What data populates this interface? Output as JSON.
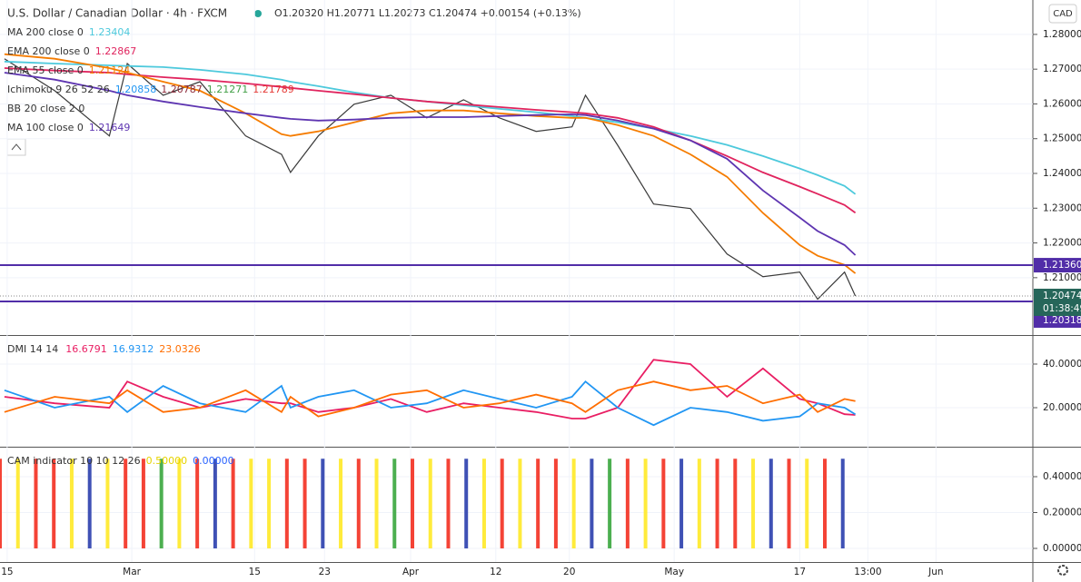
{
  "header": {
    "symbol": "U.S. Dollar / Canadian Dollar · 4h · FXCM",
    "ohlc": "O1.20320 H1.20771 L1.20273 C1.20474 +0.00154 (+0.13%)",
    "currency": "CAD"
  },
  "chart_data": [
    {
      "type": "line",
      "grid": true,
      "xlim": [
        0,
        115
      ],
      "xticks": [
        {
          "value": 0.8,
          "label": "15"
        },
        {
          "value": 14.7,
          "label": "Mar"
        },
        {
          "value": 28.4,
          "label": "15"
        },
        {
          "value": 36.2,
          "label": "23"
        },
        {
          "value": 45.8,
          "label": "Apr"
        },
        {
          "value": 55.3,
          "label": "12"
        },
        {
          "value": 63.5,
          "label": "20"
        },
        {
          "value": 75.2,
          "label": "May"
        },
        {
          "value": 89.2,
          "label": "17"
        },
        {
          "value": 96.8,
          "label": "13:00"
        },
        {
          "value": 104.4,
          "label": "Jun"
        }
      ],
      "ylim": [
        1.1935,
        1.2899
      ],
      "yticks": [
        {
          "value": 1.28,
          "label": "1.28000"
        },
        {
          "value": 1.27,
          "label": "1.27000"
        },
        {
          "value": 1.26,
          "label": "1.26000"
        },
        {
          "value": 1.25,
          "label": "1.25000"
        },
        {
          "value": 1.24,
          "label": "1.24000"
        },
        {
          "value": 1.23,
          "label": "1.23000"
        },
        {
          "value": 1.22,
          "label": "1.22000"
        },
        {
          "value": 1.21,
          "label": "1.21000"
        }
      ],
      "x": [
        0.5,
        6.1,
        12.2,
        14.2,
        18.2,
        22.3,
        27.4,
        31.4,
        32.4,
        35.5,
        39.5,
        43.6,
        47.6,
        51.7,
        55.7,
        59.8,
        63.8,
        65.3,
        68.9,
        72.9,
        77,
        81.1,
        85.1,
        89.2,
        91.2,
        94.2,
        95.4
      ],
      "series": [
        {
          "color": "#3a3a3a",
          "values": [
            1.273,
            1.2638,
            1.2508,
            1.2716,
            1.2625,
            1.2664,
            1.2508,
            1.2455,
            1.2403,
            1.2508,
            1.2599,
            1.2625,
            1.256,
            1.2612,
            1.256,
            1.2521,
            1.2534,
            1.2625,
            1.2481,
            1.2312,
            1.2299,
            1.2168,
            1.2103,
            1.2116,
            1.2038,
            1.2116,
            1.20474
          ]
        },
        {
          "name": "MA 200 close 0",
          "color": "#4dc9dc",
          "values": [
            1.2722,
            1.2716,
            1.2711,
            1.2709,
            1.2706,
            1.2698,
            1.2685,
            1.267,
            1.2664,
            1.2651,
            1.2633,
            1.2617,
            1.2607,
            1.2596,
            1.2586,
            1.2576,
            1.2565,
            1.256,
            1.2547,
            1.2529,
            1.2508,
            1.2482,
            1.245,
            1.2414,
            1.2395,
            1.2364,
            1.23404
          ]
        },
        {
          "name": "EMA 200 close 0",
          "color": "#e0245e",
          "values": [
            1.2703,
            1.2696,
            1.269,
            1.2685,
            1.2677,
            1.267,
            1.2659,
            1.2649,
            1.2646,
            1.2638,
            1.2628,
            1.2617,
            1.2607,
            1.2599,
            1.2591,
            1.2583,
            1.2576,
            1.2573,
            1.256,
            1.2534,
            1.2495,
            1.245,
            1.2403,
            1.2362,
            1.2341,
            1.2309,
            1.22867
          ]
        },
        {
          "name": "EMA 55 close 0",
          "color": "#f57c00",
          "values": [
            1.2743,
            1.273,
            1.2703,
            1.269,
            1.2664,
            1.2638,
            1.2573,
            1.2513,
            1.2508,
            1.2521,
            1.2547,
            1.2573,
            1.2581,
            1.2581,
            1.2573,
            1.2565,
            1.256,
            1.256,
            1.2539,
            1.2508,
            1.2455,
            1.239,
            1.2286,
            1.2194,
            1.2163,
            1.2137,
            1.21124
          ]
        },
        {
          "name": "MA 100 close 0",
          "color": "#5e35b1",
          "values": [
            1.269,
            1.267,
            1.2638,
            1.2625,
            1.2607,
            1.2591,
            1.2573,
            1.256,
            1.2557,
            1.2552,
            1.2555,
            1.256,
            1.2562,
            1.2562,
            1.2565,
            1.2568,
            1.257,
            1.2568,
            1.2552,
            1.2529,
            1.2495,
            1.2442,
            1.2351,
            1.2273,
            1.2234,
            1.2194,
            1.21649
          ]
        }
      ],
      "indicators": [
        {
          "name": "Ichimoku 9 26 52 26",
          "values": [
            1.20858,
            1.20787,
            1.21271,
            1.21789
          ],
          "colors": [
            "#2196f3",
            "#8d2a3a",
            "#43a047",
            "#e53935"
          ]
        },
        {
          "name": "BB 20 close 2 0"
        }
      ],
      "price_lines": [
        {
          "value": 1.2136,
          "label": "1.21360",
          "color": "#512da8"
        },
        {
          "value": 1.20318,
          "label": "1.20318",
          "color": "#512da8"
        }
      ],
      "last_price": 1.20474,
      "countdown": "01:38:49"
    },
    {
      "type": "line",
      "grid": true,
      "legend_title": "DMI 14 14",
      "ylim": [
        2.1,
        52.9
      ],
      "yticks": [
        {
          "value": 40,
          "label": "40.0000"
        },
        {
          "value": 20,
          "label": "20.0000"
        }
      ],
      "x": [
        0.5,
        6.1,
        12.2,
        14.2,
        18.2,
        22.3,
        27.4,
        31.4,
        32.4,
        35.5,
        39.5,
        43.6,
        47.6,
        51.7,
        55.7,
        59.8,
        63.8,
        65.3,
        68.9,
        72.9,
        77,
        81.1,
        85.1,
        89.2,
        91.2,
        94.2,
        95.4
      ],
      "series": [
        {
          "color": "#e91e63",
          "values": [
            25,
            22,
            20,
            32,
            25,
            20,
            24,
            22,
            22,
            18,
            20,
            24,
            18,
            22,
            20,
            18,
            15,
            15,
            20,
            42,
            40,
            25,
            38,
            24,
            22,
            17,
            16.6791
          ]
        },
        {
          "color": "#2196f3",
          "values": [
            28,
            20,
            25,
            18,
            30,
            22,
            18,
            30,
            20,
            25,
            28,
            20,
            22,
            28,
            24,
            20,
            25,
            32,
            20,
            12,
            20,
            18,
            14,
            16,
            22,
            20,
            16.9312
          ]
        },
        {
          "color": "#ff6d00",
          "values": [
            18,
            25,
            22,
            28,
            18,
            20,
            28,
            18,
            25,
            16,
            20,
            26,
            28,
            20,
            22,
            26,
            22,
            18,
            28,
            32,
            28,
            30,
            22,
            26,
            18,
            24,
            23.0326
          ]
        }
      ]
    },
    {
      "type": "bar",
      "grid": true,
      "legend_title": "CAM indicator 10 10 12 26",
      "legend_values": [
        {
          "value": 0.5,
          "label": "0.50000",
          "color": "#e6d300"
        },
        {
          "value": 0,
          "label": "0.00000",
          "color": "#2962ff"
        }
      ],
      "ylim": [
        -0.076,
        0.562
      ],
      "yticks": [
        {
          "value": 0.4,
          "label": "0.40000"
        },
        {
          "value": 0.2,
          "label": "0.20000"
        },
        {
          "value": 0,
          "label": "0.00000"
        }
      ],
      "x": [
        0,
        2,
        4,
        6,
        8,
        10,
        12,
        14,
        16,
        18,
        20,
        22,
        24,
        26,
        28,
        30,
        32,
        34,
        36,
        38,
        40,
        42,
        44,
        46,
        48,
        50,
        52,
        54,
        56,
        58,
        60,
        62,
        64,
        66,
        68,
        70,
        72,
        74,
        76,
        78,
        80,
        82,
        84,
        86,
        88,
        90,
        92,
        94
      ],
      "values": [
        0.5,
        0.5,
        0.5,
        0.5,
        0.5,
        0.5,
        0.5,
        0.5,
        0.5,
        0.5,
        0.5,
        0.5,
        0.5,
        0.5,
        0.5,
        0.5,
        0.5,
        0.5,
        0.5,
        0.5,
        0.5,
        0.5,
        0.5,
        0.5,
        0.5,
        0.5,
        0.5,
        0.5,
        0.5,
        0.5,
        0.5,
        0.5,
        0.5,
        0.5,
        0.5,
        0.5,
        0.5,
        0.5,
        0.5,
        0.5,
        0.5,
        0.5,
        0.5,
        0.5,
        0.5,
        0.5,
        0.5,
        0.5
      ],
      "colors": [
        "#f44336",
        "#ffeb3b",
        "#f44336",
        "#f44336",
        "#ffeb3b",
        "#3f51b5",
        "#ffeb3b",
        "#f44336",
        "#f44336",
        "#4caf50",
        "#ffeb3b",
        "#f44336",
        "#3f51b5",
        "#f44336",
        "#ffeb3b",
        "#ffeb3b",
        "#f44336",
        "#f44336",
        "#3f51b5",
        "#ffeb3b",
        "#f44336",
        "#ffeb3b",
        "#4caf50",
        "#f44336",
        "#ffeb3b",
        "#f44336",
        "#3f51b5",
        "#ffeb3b",
        "#f44336",
        "#ffeb3b",
        "#f44336",
        "#f44336",
        "#ffeb3b",
        "#3f51b5",
        "#4caf50",
        "#f44336",
        "#ffeb3b",
        "#f44336",
        "#3f51b5",
        "#ffeb3b",
        "#f44336",
        "#f44336",
        "#ffeb3b",
        "#3f51b5",
        "#f44336",
        "#ffeb3b",
        "#f44336",
        "#3f51b5"
      ]
    }
  ]
}
